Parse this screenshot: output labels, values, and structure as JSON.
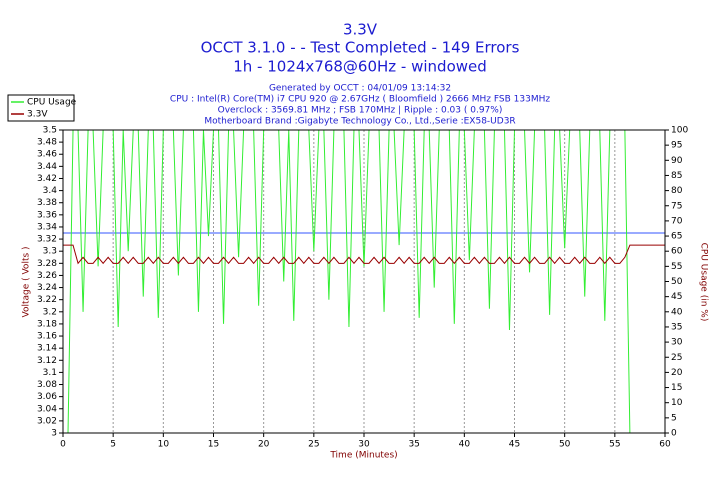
{
  "chart_data": {
    "type": "line",
    "title": "3.3V",
    "subtitle_lines": [
      "OCCT 3.1.0 -  - Test Completed - 149 Errors",
      "1h - 1024x768@60Hz - windowed"
    ],
    "info_lines": [
      "Generated by OCCT : 04/01/09 13:14:32",
      "CPU : Intel(R) Core(TM) i7 CPU 920 @ 2.67GHz ( Bloomfield ) 2666 MHz FSB 133MHz",
      "Overclock : 3569.81 MHz ; FSB 170MHz | Ripple : 0.03 ( 0.97%)",
      "Motherboard Brand :Gigabyte Technology Co., Ltd.,Serie :EX58-UD3R"
    ],
    "xlabel": "Time (Minutes)",
    "ylabel": "Voltage ( Volts )",
    "y2label": "CPU Usage (in %)",
    "xlim": [
      0,
      60
    ],
    "xticks": [
      0,
      5,
      10,
      15,
      20,
      25,
      30,
      35,
      40,
      45,
      50,
      55,
      60
    ],
    "ylim": [
      3,
      3.5
    ],
    "yticks": [
      3,
      3.02,
      3.04,
      3.06,
      3.08,
      3.1,
      3.12,
      3.14,
      3.16,
      3.18,
      3.2,
      3.22,
      3.24,
      3.26,
      3.28,
      3.3,
      3.32,
      3.34,
      3.36,
      3.38,
      3.4,
      3.42,
      3.44,
      3.46,
      3.48,
      3.5
    ],
    "y2lim": [
      0,
      100
    ],
    "y2ticks": [
      0,
      5,
      10,
      15,
      20,
      25,
      30,
      35,
      40,
      45,
      50,
      55,
      60,
      65,
      70,
      75,
      80,
      85,
      90,
      95,
      100
    ],
    "grid": true,
    "legend": "top-left",
    "reference_line": {
      "value": 3.33,
      "color": "#3355ff"
    },
    "x": [
      0,
      0.5,
      1,
      1.5,
      2,
      2.5,
      3,
      3.5,
      4,
      4.5,
      5,
      5.5,
      6,
      6.5,
      7,
      7.5,
      8,
      8.5,
      9,
      9.5,
      10,
      10.5,
      11,
      11.5,
      12,
      12.5,
      13,
      13.5,
      14,
      14.5,
      15,
      15.5,
      16,
      16.5,
      17,
      17.5,
      18,
      18.5,
      19,
      19.5,
      20,
      20.5,
      21,
      21.5,
      22,
      22.5,
      23,
      23.5,
      24,
      24.5,
      25,
      25.5,
      26,
      26.5,
      27,
      27.5,
      28,
      28.5,
      29,
      29.5,
      30,
      30.5,
      31,
      31.5,
      32,
      32.5,
      33,
      33.5,
      34,
      34.5,
      35,
      35.5,
      36,
      36.5,
      37,
      37.5,
      38,
      38.5,
      39,
      39.5,
      40,
      40.5,
      41,
      41.5,
      42,
      42.5,
      43,
      43.5,
      44,
      44.5,
      45,
      45.5,
      46,
      46.5,
      47,
      47.5,
      48,
      48.5,
      49,
      49.5,
      50,
      50.5,
      51,
      51.5,
      52,
      52.5,
      53,
      53.5,
      54,
      54.5,
      55,
      55.5,
      56,
      56.5,
      57,
      57.5,
      58,
      58.5,
      59,
      59.5,
      60
    ],
    "series": [
      {
        "name": "CPU Usage",
        "color": "#33ee33",
        "axis": "y2",
        "values": [
          0,
          0,
          100,
          100,
          40,
          100,
          100,
          55,
          100,
          100,
          100,
          35,
          100,
          60,
          100,
          100,
          45,
          100,
          100,
          38,
          100,
          100,
          100,
          52,
          100,
          100,
          100,
          40,
          100,
          65,
          100,
          100,
          36,
          100,
          100,
          58,
          100,
          100,
          100,
          42,
          100,
          100,
          100,
          100,
          50,
          100,
          37,
          100,
          100,
          100,
          60,
          100,
          100,
          44,
          100,
          100,
          100,
          35,
          100,
          100,
          55,
          100,
          100,
          100,
          40,
          100,
          100,
          62,
          100,
          100,
          100,
          38,
          100,
          100,
          48,
          100,
          100,
          100,
          36,
          100,
          100,
          57,
          100,
          100,
          100,
          41,
          100,
          100,
          100,
          34,
          100,
          100,
          100,
          53,
          100,
          100,
          100,
          39,
          100,
          100,
          61,
          100,
          100,
          100,
          45,
          100,
          100,
          100,
          37,
          100,
          100,
          100,
          100,
          0,
          0,
          0,
          0,
          0,
          0,
          0,
          0
        ]
      },
      {
        "name": "3.3V",
        "color": "#990000",
        "axis": "y",
        "values": [
          3.31,
          3.31,
          3.31,
          3.28,
          3.29,
          3.28,
          3.28,
          3.29,
          3.28,
          3.29,
          3.28,
          3.28,
          3.29,
          3.28,
          3.29,
          3.28,
          3.28,
          3.29,
          3.28,
          3.29,
          3.28,
          3.28,
          3.29,
          3.28,
          3.29,
          3.28,
          3.28,
          3.29,
          3.28,
          3.29,
          3.28,
          3.28,
          3.29,
          3.28,
          3.29,
          3.28,
          3.28,
          3.29,
          3.28,
          3.29,
          3.28,
          3.28,
          3.29,
          3.28,
          3.29,
          3.28,
          3.28,
          3.29,
          3.28,
          3.29,
          3.28,
          3.28,
          3.29,
          3.28,
          3.29,
          3.28,
          3.28,
          3.29,
          3.28,
          3.29,
          3.28,
          3.28,
          3.29,
          3.28,
          3.29,
          3.28,
          3.28,
          3.29,
          3.28,
          3.29,
          3.28,
          3.28,
          3.29,
          3.28,
          3.29,
          3.28,
          3.28,
          3.29,
          3.28,
          3.29,
          3.28,
          3.28,
          3.29,
          3.28,
          3.29,
          3.28,
          3.28,
          3.29,
          3.28,
          3.29,
          3.28,
          3.28,
          3.29,
          3.28,
          3.29,
          3.28,
          3.28,
          3.29,
          3.28,
          3.29,
          3.28,
          3.28,
          3.29,
          3.28,
          3.29,
          3.28,
          3.28,
          3.29,
          3.28,
          3.29,
          3.28,
          3.28,
          3.29,
          3.31,
          3.31,
          3.31,
          3.31,
          3.31,
          3.31,
          3.31,
          3.31
        ]
      }
    ]
  }
}
